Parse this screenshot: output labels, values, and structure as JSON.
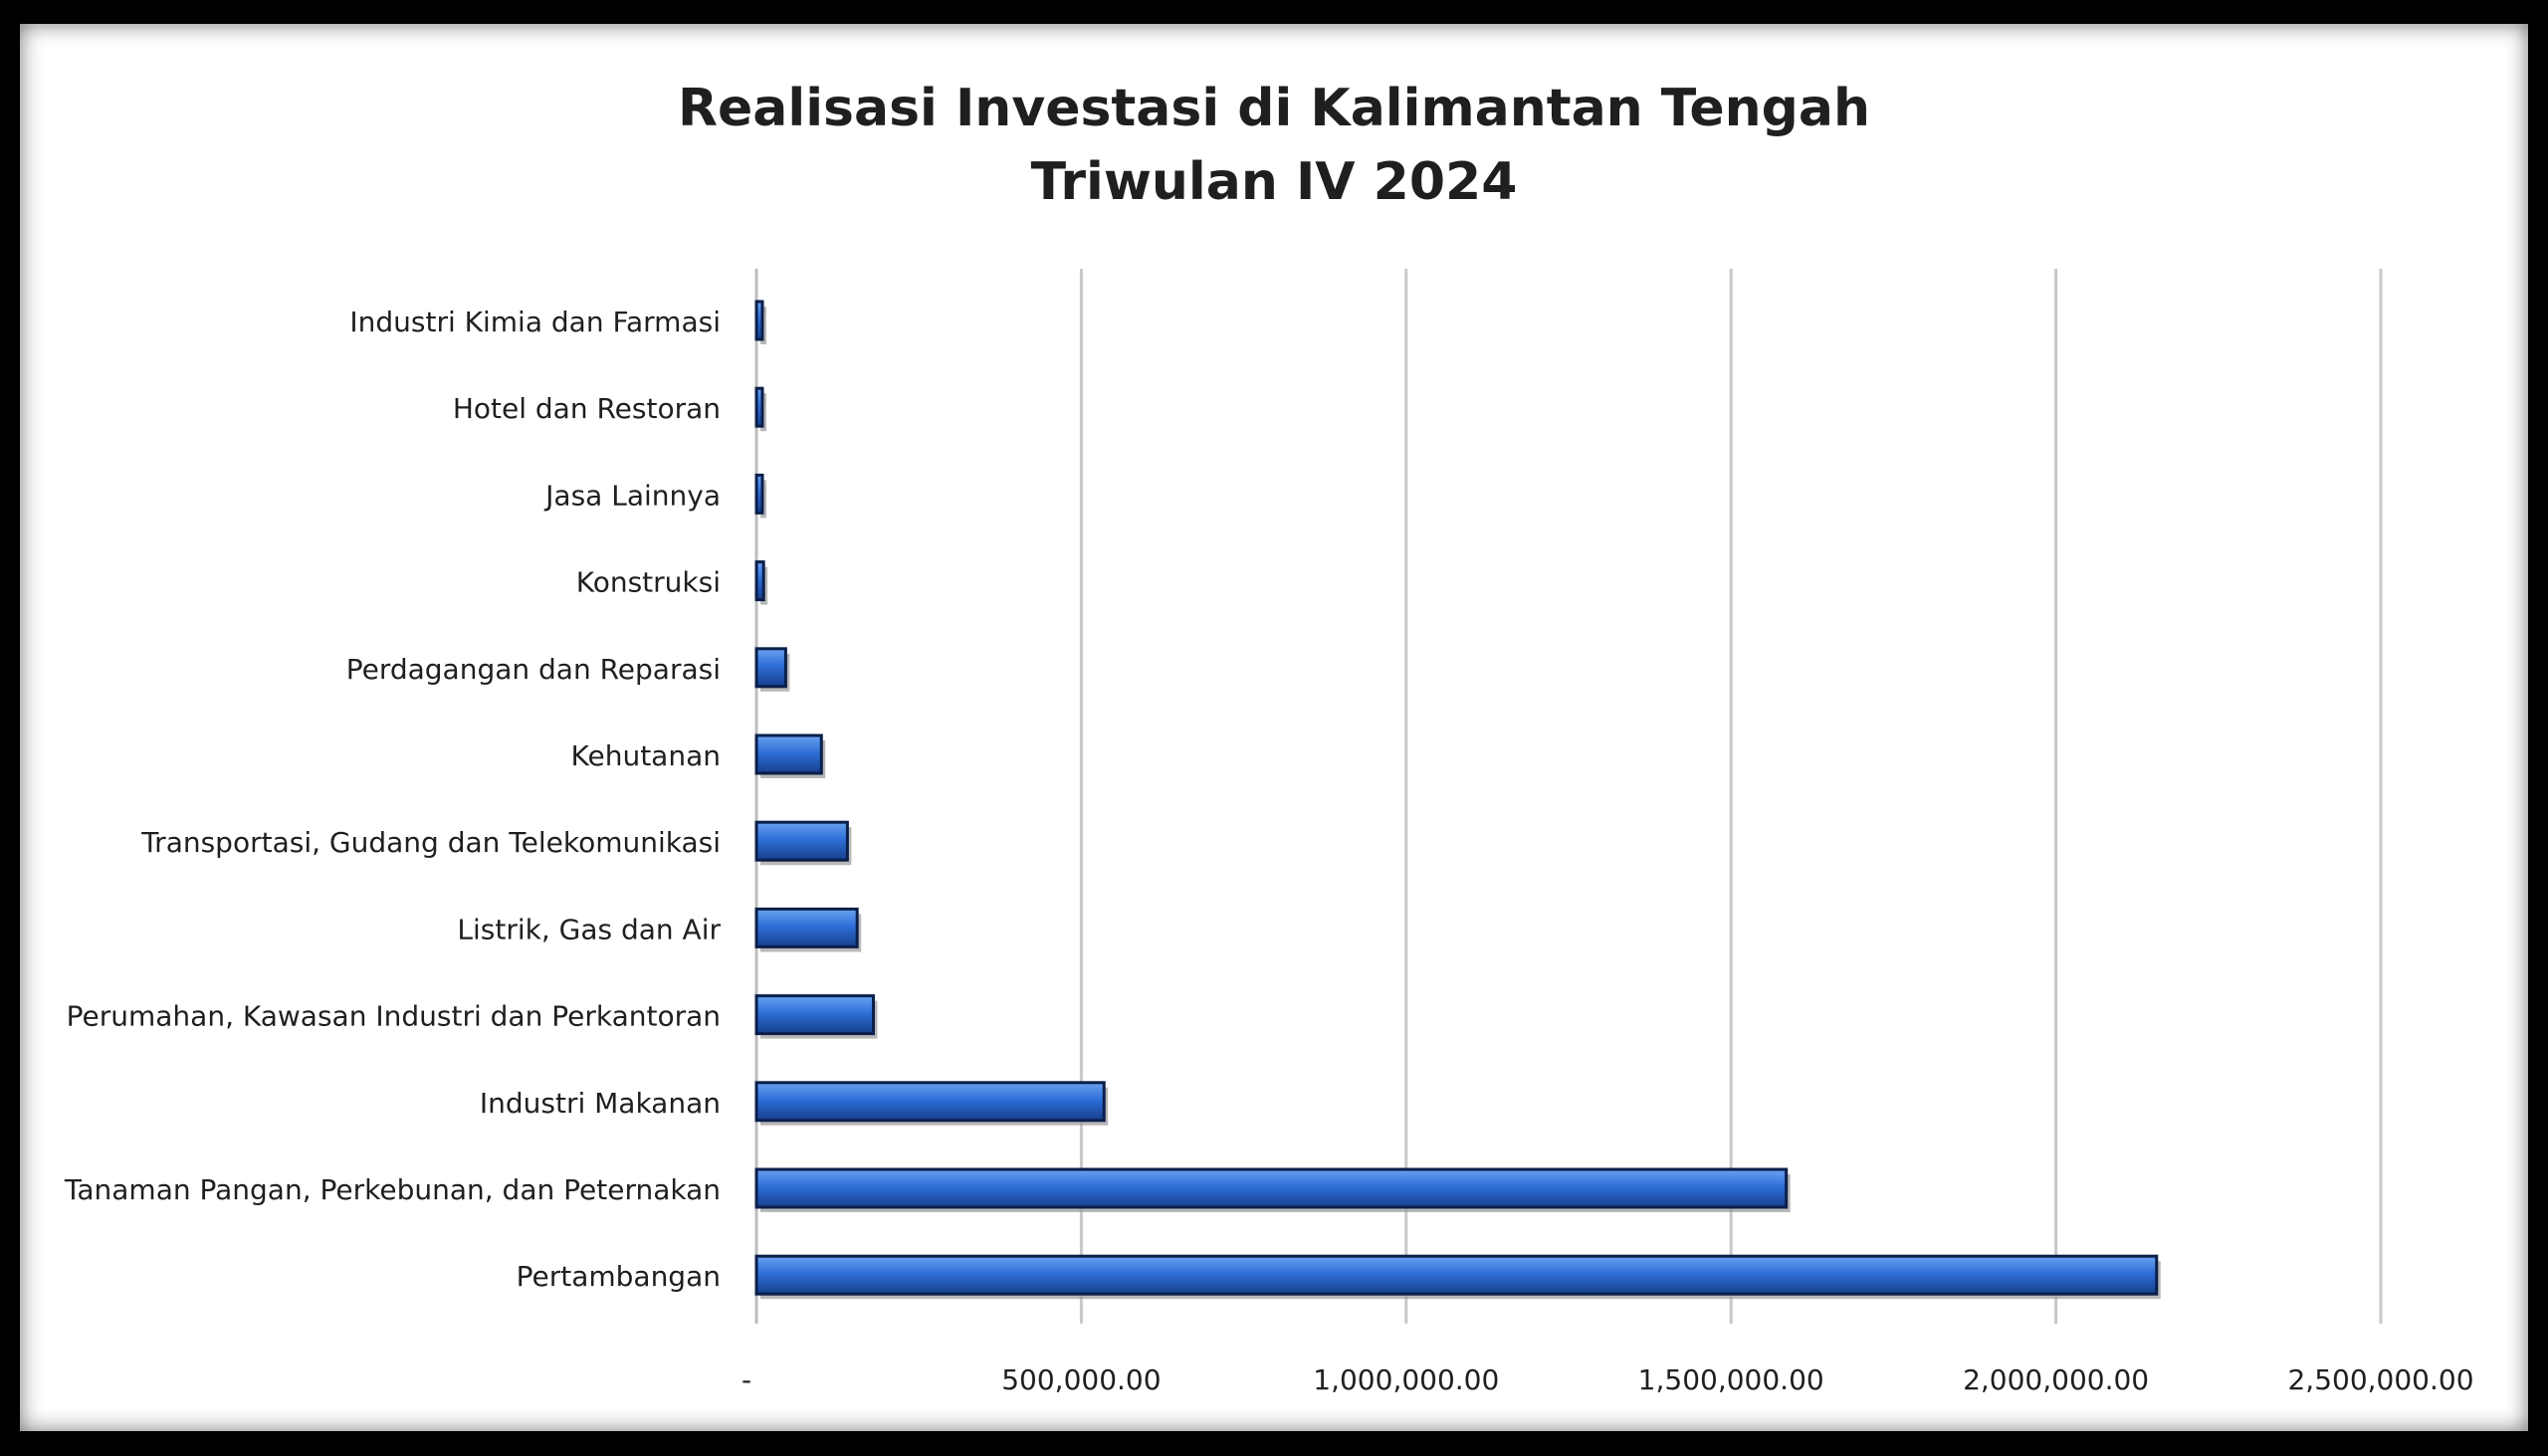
{
  "chart_data": {
    "type": "bar",
    "orientation": "horizontal",
    "title": "Realisasi Investasi di Kalimantan Tengah",
    "subtitle": "Triwulan IV 2024",
    "categories": [
      "Industri Kimia dan Farmasi",
      "Hotel dan Restoran",
      "Jasa Lainnya",
      "Konstruksi",
      "Perdagangan dan Reparasi",
      "Kehutanan",
      "Transportasi, Gudang dan Telekomunikasi",
      "Listrik, Gas dan Air",
      "Perumahan, Kawasan Industri dan Perkantoran",
      "Industri Makanan",
      "Tanaman Pangan, Perkebunan, dan Peternakan",
      "Pertambangan"
    ],
    "values": [
      3000,
      4000,
      9000,
      11000,
      45000,
      100000,
      140000,
      155000,
      180000,
      535000,
      1585000,
      2155000
    ],
    "xlim": [
      0,
      2500000
    ],
    "xticks": [
      0,
      500000,
      1000000,
      1500000,
      2000000,
      2500000
    ],
    "xtick_labels": [
      "-",
      "500,000.00",
      "1,000,000.00",
      "1,500,000.00",
      "2,000,000.00",
      "2,500,000.00"
    ],
    "xlabel": "",
    "ylabel": "",
    "grid": "vertical",
    "legend": "none",
    "bar_color": "#2e6fd8"
  }
}
